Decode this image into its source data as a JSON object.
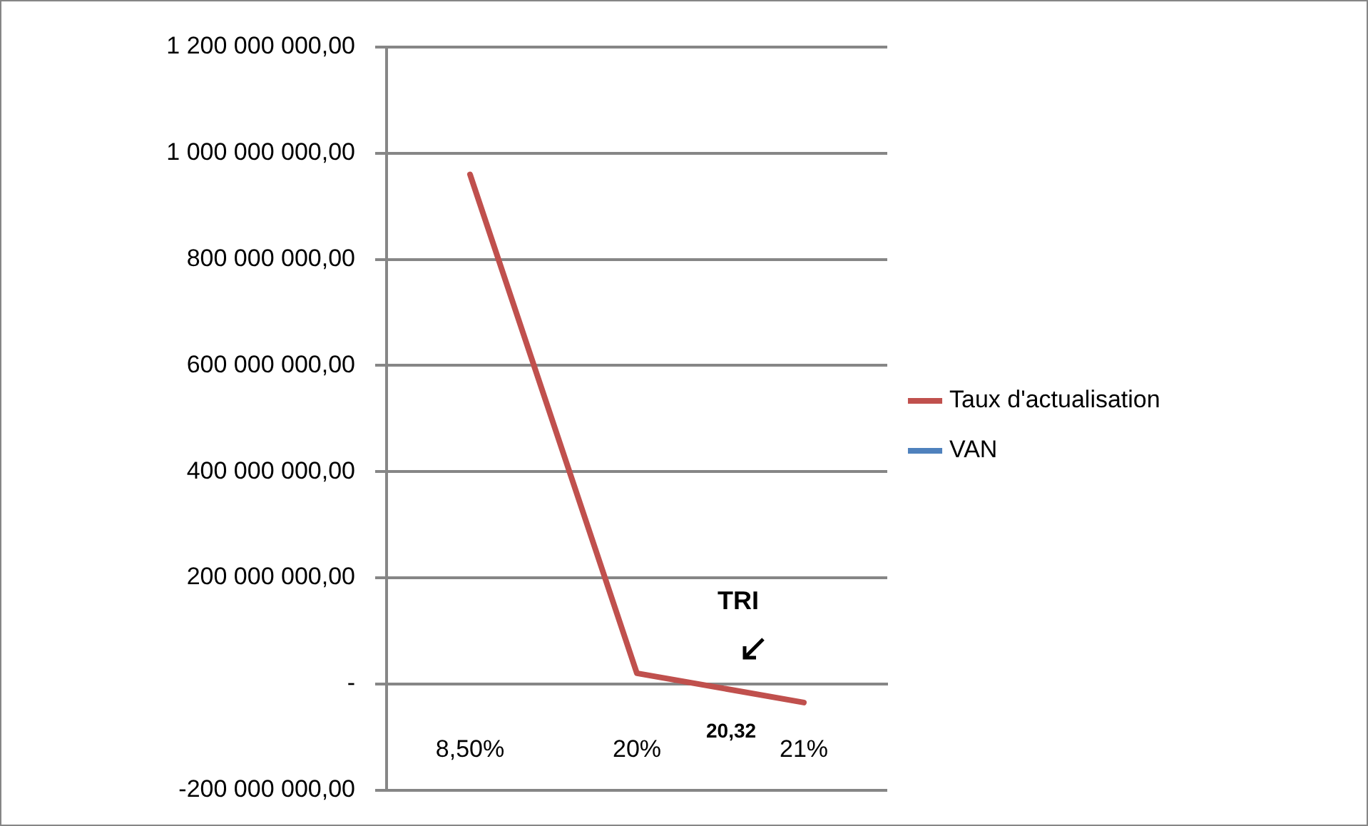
{
  "chart_data": {
    "type": "line",
    "categories": [
      "8,50%",
      "20%",
      "21%"
    ],
    "series": [
      {
        "name": "Taux d'actualisation",
        "color": "#c0504d",
        "values": [
          960000000,
          20000000,
          -35000000
        ]
      },
      {
        "name": "VAN",
        "color": "#4f81bd",
        "values": [
          null,
          null,
          null
        ]
      }
    ],
    "ylim": [
      -200000000,
      1200000000
    ],
    "yticks": [
      {
        "value": -200000000,
        "label": "-200 000 000,00"
      },
      {
        "value": 0,
        "label": "-"
      },
      {
        "value": 200000000,
        "label": "200 000 000,00"
      },
      {
        "value": 400000000,
        "label": "400 000 000,00"
      },
      {
        "value": 600000000,
        "label": "600 000 000,00"
      },
      {
        "value": 800000000,
        "label": "800 000 000,00"
      },
      {
        "value": 1000000000,
        "label": "1 000 000 000,00"
      },
      {
        "value": 1200000000,
        "label": "1 200 000 000,00"
      }
    ],
    "grid": "y",
    "legend": "right",
    "marker": "none",
    "line_style": "solid",
    "annotations": [
      "TRI",
      "20,32"
    ]
  }
}
